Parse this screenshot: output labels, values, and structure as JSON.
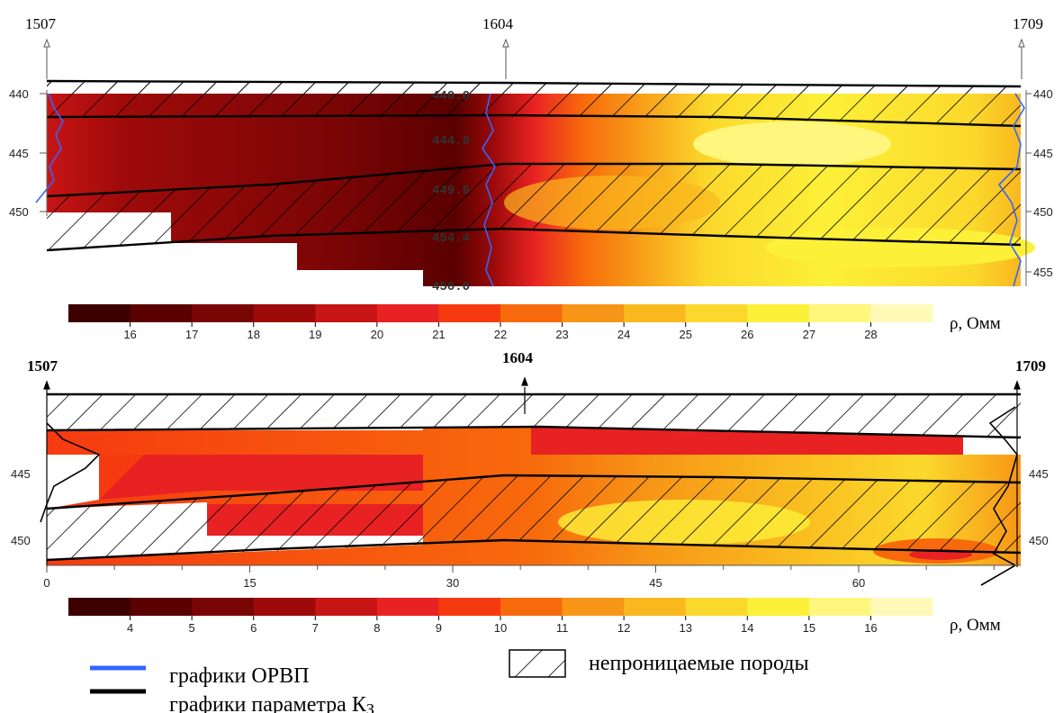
{
  "chart_data": [
    {
      "type": "heatmap",
      "wells": [
        "1507",
        "1604",
        "1709"
      ],
      "y_ticks": [
        "440",
        "445",
        "450",
        "455"
      ],
      "depth_labels": [
        "440.0",
        "444.8",
        "449.6",
        "454.4",
        "456.0"
      ],
      "colorbar_ticks": [
        "16",
        "17",
        "18",
        "19",
        "20",
        "21",
        "22",
        "23",
        "24",
        "25",
        "26",
        "27",
        "28"
      ],
      "colorbar_unit": "ρ, Омм",
      "colors": [
        "#3d0000",
        "#5a0000",
        "#7a0505",
        "#9e0a0a",
        "#c71414",
        "#e82222",
        "#f63a10",
        "#f76a0c",
        "#f79616",
        "#f9b81e",
        "#fbd92c",
        "#fdf038",
        "#fff67e",
        "#fffab8"
      ]
    },
    {
      "type": "heatmap",
      "wells": [
        "1507",
        "1604",
        "1709"
      ],
      "y_ticks": [
        "445",
        "450"
      ],
      "x_ticks": [
        "0",
        "15",
        "30",
        "45",
        "60"
      ],
      "colorbar_ticks": [
        "4",
        "5",
        "6",
        "7",
        "8",
        "9",
        "10",
        "11",
        "12",
        "13",
        "14",
        "15",
        "16"
      ],
      "colorbar_unit": "ρ, Омм",
      "colors": [
        "#3d0000",
        "#5a0000",
        "#7a0505",
        "#9e0a0a",
        "#c71414",
        "#e82222",
        "#f63a10",
        "#f76a0c",
        "#f79616",
        "#f9b81e",
        "#fbd92c",
        "#fdf038",
        "#fff67e",
        "#fffab8"
      ]
    }
  ],
  "legend": {
    "orvp": "графики ОРВП",
    "kz": "графики параметра К",
    "kz_sub": "З",
    "impermeable": "непроницаемые породы",
    "orvp_color": "#3366ff",
    "kz_color": "#000000"
  }
}
